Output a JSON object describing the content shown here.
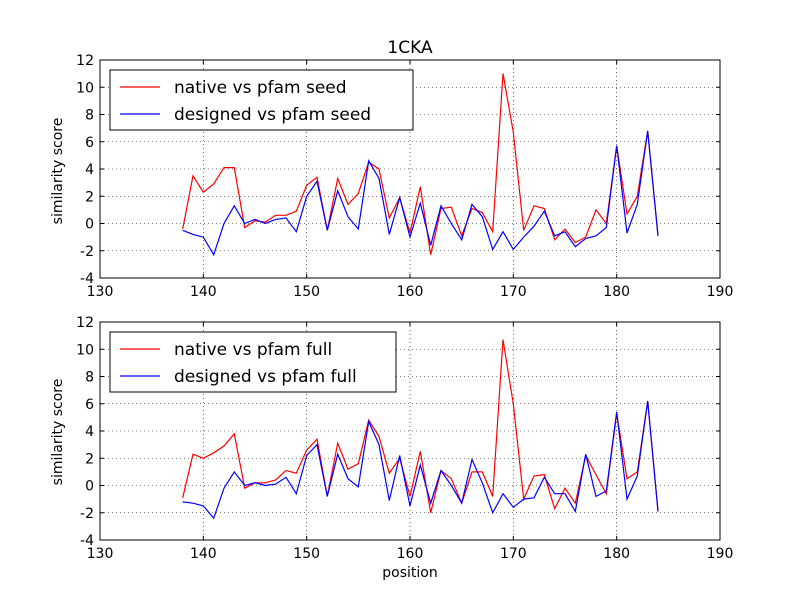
{
  "chart_data": [
    {
      "type": "line",
      "title": "1CKA",
      "xlabel": "",
      "ylabel": "similarity score",
      "xlim": [
        130,
        190
      ],
      "ylim": [
        -4,
        12
      ],
      "xticks": [
        130,
        140,
        150,
        160,
        170,
        180,
        190
      ],
      "yticks": [
        -4,
        -2,
        0,
        2,
        4,
        6,
        8,
        10,
        12
      ],
      "grid": true,
      "legend": "top-left",
      "x": [
        138,
        139,
        140,
        141,
        142,
        143,
        144,
        145,
        146,
        147,
        148,
        149,
        150,
        151,
        152,
        153,
        154,
        155,
        156,
        157,
        158,
        159,
        160,
        161,
        162,
        163,
        164,
        165,
        166,
        167,
        168,
        169,
        170,
        171,
        172,
        173,
        174,
        175,
        176,
        177,
        178,
        179,
        180,
        181,
        182,
        183,
        184
      ],
      "series": [
        {
          "name": "native vs pfam seed",
          "color": "#ff0000",
          "values": [
            -0.4,
            3.5,
            2.3,
            2.9,
            4.1,
            4.1,
            -0.3,
            0.2,
            0.1,
            0.6,
            0.6,
            0.9,
            2.8,
            3.4,
            -0.5,
            3.3,
            1.4,
            2.2,
            4.5,
            4.0,
            0.4,
            1.9,
            -0.7,
            2.7,
            -2.3,
            1.1,
            1.2,
            -0.9,
            1.1,
            0.8,
            -0.6,
            11.0,
            6.7,
            -0.5,
            1.3,
            1.1,
            -1.2,
            -0.4,
            -1.4,
            -1.0,
            1.0,
            0.0,
            5.7,
            0.7,
            2.0,
            6.8,
            -0.9
          ]
        },
        {
          "name": "designed vs pfam seed",
          "color": "#0000ff",
          "values": [
            -0.5,
            -0.8,
            -1.0,
            -2.3,
            0.0,
            1.3,
            0.0,
            0.3,
            0.0,
            0.3,
            0.4,
            -0.6,
            2.0,
            3.1,
            -0.5,
            2.4,
            0.5,
            -0.4,
            4.6,
            3.3,
            -0.8,
            1.9,
            -1.0,
            1.5,
            -1.6,
            1.3,
            0.0,
            -1.2,
            1.4,
            0.5,
            -1.9,
            -0.6,
            -1.9,
            -1.0,
            -0.2,
            0.9,
            -0.9,
            -0.6,
            -1.7,
            -1.1,
            -0.9,
            -0.3,
            5.7,
            -0.7,
            1.4,
            6.8,
            -0.9
          ]
        }
      ]
    },
    {
      "type": "line",
      "title": "",
      "xlabel": "position",
      "ylabel": "similarity score",
      "xlim": [
        130,
        190
      ],
      "ylim": [
        -4,
        12
      ],
      "xticks": [
        130,
        140,
        150,
        160,
        170,
        180,
        190
      ],
      "yticks": [
        -4,
        -2,
        0,
        2,
        4,
        6,
        8,
        10,
        12
      ],
      "grid": true,
      "legend": "top-left",
      "x": [
        138,
        139,
        140,
        141,
        142,
        143,
        144,
        145,
        146,
        147,
        148,
        149,
        150,
        151,
        152,
        153,
        154,
        155,
        156,
        157,
        158,
        159,
        160,
        161,
        162,
        163,
        164,
        165,
        166,
        167,
        168,
        169,
        170,
        171,
        172,
        173,
        174,
        175,
        176,
        177,
        178,
        179,
        180,
        181,
        182,
        183,
        184
      ],
      "series": [
        {
          "name": "native vs pfam full",
          "color": "#ff0000",
          "values": [
            -0.9,
            2.3,
            2.0,
            2.4,
            2.9,
            3.8,
            -0.2,
            0.2,
            0.2,
            0.4,
            1.1,
            0.9,
            2.6,
            3.4,
            -0.8,
            3.1,
            1.2,
            1.6,
            4.8,
            3.6,
            0.9,
            2.0,
            -0.8,
            2.5,
            -2.0,
            1.1,
            0.5,
            -1.3,
            1.0,
            1.0,
            -0.8,
            10.7,
            6.0,
            -1.0,
            0.7,
            0.8,
            -1.7,
            -0.2,
            -1.3,
            2.2,
            0.8,
            -0.6,
            5.3,
            0.5,
            1.0,
            6.2,
            -1.9
          ]
        },
        {
          "name": "designed vs pfam full",
          "color": "#0000ff",
          "values": [
            -1.2,
            -1.3,
            -1.5,
            -2.4,
            -0.2,
            1.0,
            0.0,
            0.2,
            0.0,
            0.1,
            0.6,
            -0.6,
            2.2,
            3.0,
            -0.8,
            2.3,
            0.5,
            -0.1,
            4.7,
            3.0,
            -1.1,
            2.2,
            -1.5,
            1.5,
            -1.3,
            1.1,
            0.0,
            -1.3,
            1.9,
            0.2,
            -2.0,
            -0.6,
            -1.6,
            -1.0,
            -0.9,
            0.6,
            -0.6,
            -0.6,
            -1.9,
            2.3,
            -0.8,
            -0.4,
            5.4,
            -1.0,
            0.7,
            6.2,
            -1.9
          ]
        }
      ]
    }
  ]
}
